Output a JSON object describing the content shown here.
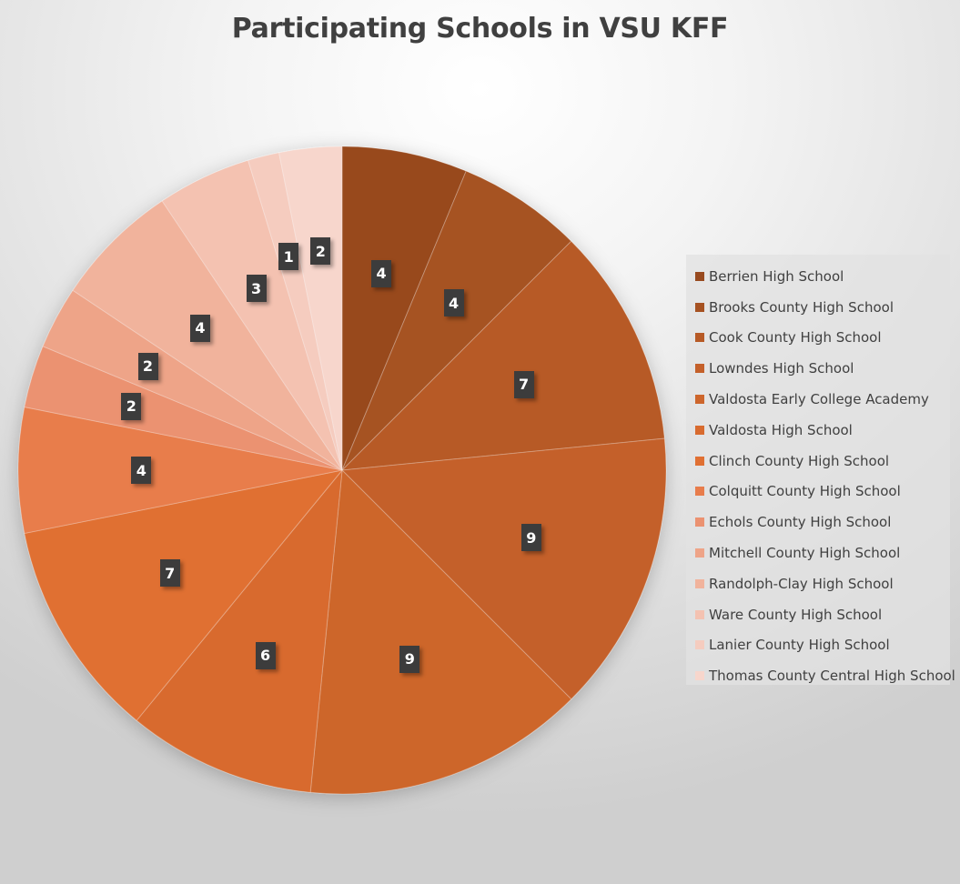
{
  "chart_data": {
    "type": "pie",
    "title": "Participating Schools in VSU KFF",
    "categories": [
      "Berrien High School",
      "Brooks County High School",
      "Cook County High School",
      "Lowndes High School",
      "Valdosta Early College Academy",
      "Valdosta High School",
      "Clinch County High School",
      "Colquitt County High School",
      "Echols County High School",
      "Mitchell County High School",
      "Randolph-Clay High School",
      "Ware County High School",
      "Lanier County High School",
      "Thomas County Central High School"
    ],
    "values": [
      4,
      4,
      7,
      9,
      9,
      6,
      7,
      4,
      2,
      2,
      4,
      3,
      1,
      2
    ],
    "colors": [
      "#984a1f",
      "#a65222",
      "#b75a26",
      "#c4602a",
      "#cd662c",
      "#d86b2f",
      "#e07033",
      "#e87d4c",
      "#eb9271",
      "#eea488",
      "#f1b39c",
      "#f4c2b1",
      "#f5ccbf",
      "#f7d6cc"
    ],
    "legend_position": "right",
    "data_labels": true,
    "start_angle": 0,
    "direction": "clockwise"
  }
}
